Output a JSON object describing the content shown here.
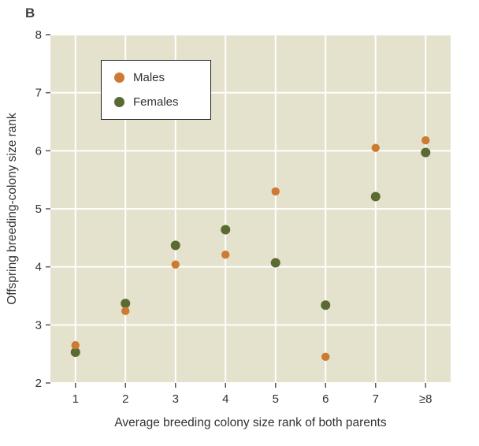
{
  "panel_label": "B",
  "colors": {
    "plot_bg": "#e4e1cc",
    "grid": "#ffffff",
    "axis": "#555555",
    "text": "#333333",
    "panel_label": "#3f3f3f",
    "legend_border": "#231f20",
    "legend_bg": "#ffffff"
  },
  "chart_data": {
    "type": "scatter",
    "title": "",
    "xlabel": "Average breeding colony size rank of both parents",
    "ylabel": "Offspring breeding-colony size rank",
    "categories": [
      "1",
      "2",
      "3",
      "4",
      "5",
      "6",
      "7",
      "≥8"
    ],
    "ylim": [
      2,
      8
    ],
    "yticks": [
      2,
      3,
      4,
      5,
      6,
      7,
      8
    ],
    "grid": true,
    "legend_position": "top-left",
    "series": [
      {
        "name": "Males",
        "color": "#cd7b32",
        "values": [
          2.65,
          3.24,
          4.04,
          4.21,
          5.3,
          2.45,
          6.05,
          6.18
        ]
      },
      {
        "name": "Females",
        "color": "#5a6a33",
        "values": [
          2.53,
          3.37,
          4.37,
          4.64,
          4.07,
          3.34,
          5.21,
          5.97
        ]
      }
    ]
  }
}
